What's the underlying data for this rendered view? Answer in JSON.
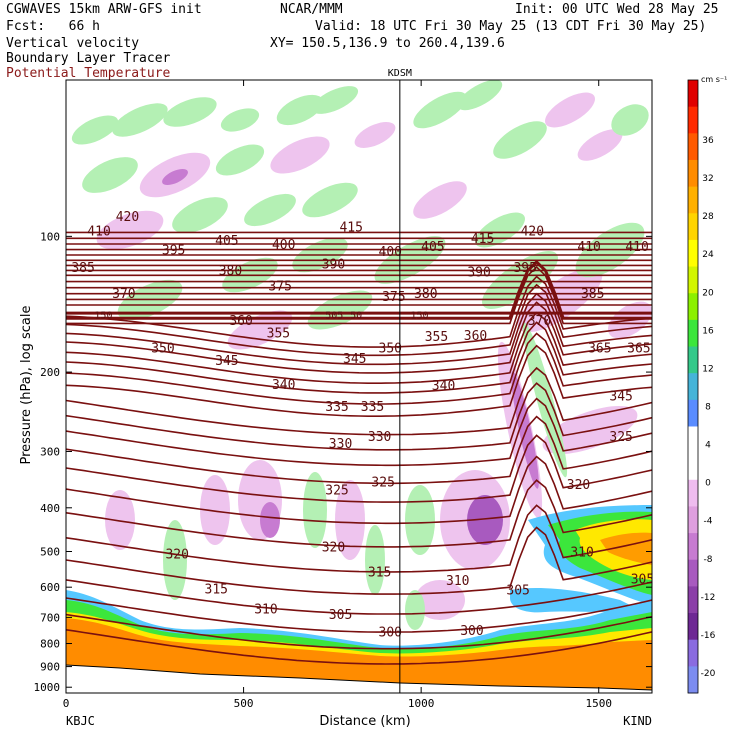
{
  "header": {
    "model": "CGWAVES 15km ARW-GFS init",
    "org": "NCAR/MMM",
    "init": "Init: 00 UTC Wed 28 May 25",
    "fcst": "Fcst:   66 h",
    "valid": "Valid: 18 UTC Fri 30 May 25 (13 CDT Fri 30 May 25)",
    "field1": "Vertical velocity",
    "xy": "XY= 150.5,136.9 to 260.4,139.6",
    "field2": "Boundary Layer Tracer",
    "field3": "Potential Temperature",
    "field3_color": "#8b1a1a"
  },
  "chart_data": {
    "type": "cross-section",
    "xlabel": "Distance (km)",
    "ylabel": "Pressure (hPa), log scale",
    "xlim": [
      0,
      1650
    ],
    "ylim": [
      1000,
      50
    ],
    "x_ticks": [
      0,
      500,
      1000,
      1500
    ],
    "y_ticks": [
      100,
      200,
      300,
      400,
      500,
      600,
      700,
      800,
      900,
      1000
    ],
    "left_station": "KBJC",
    "right_station": "KIND",
    "marker_station": "KDSM",
    "marker_x_km": 940,
    "colorbar": {
      "unit": "cm s⁻¹",
      "tick_labels": [
        "36",
        "32",
        "28",
        "24",
        "20",
        "16",
        "12",
        "8",
        "4",
        "0",
        "-4",
        "-8",
        "-12",
        "-16",
        "-20"
      ],
      "colors": [
        "#e00000",
        "#ff2a00",
        "#ff5a00",
        "#ff8c00",
        "#ffb000",
        "#ffd400",
        "#ffff00",
        "#d2f500",
        "#8cf000",
        "#3ce63c",
        "#34c98a",
        "#45b4d8",
        "#5a8cff",
        "#ffffff",
        "#ffffff",
        "#efbcef",
        "#df9fdf",
        "#c77bd1",
        "#a85abf",
        "#8b3fa8",
        "#6e2894",
        "#8a6be0",
        "#7c8cf0"
      ]
    },
    "isentropes": [
      {
        "theta": "420",
        "x": 140,
        "p": 91
      },
      {
        "theta": "410",
        "x": 60,
        "p": 98
      },
      {
        "theta": "415",
        "x": 770,
        "p": 96
      },
      {
        "theta": "420",
        "x": 1280,
        "p": 98
      },
      {
        "theta": "405",
        "x": 420,
        "p": 103
      },
      {
        "theta": "400",
        "x": 580,
        "p": 105
      },
      {
        "theta": "395",
        "x": 270,
        "p": 108
      },
      {
        "theta": "405",
        "x": 1000,
        "p": 106
      },
      {
        "theta": "415",
        "x": 1140,
        "p": 102
      },
      {
        "theta": "410",
        "x": 1440,
        "p": 106
      },
      {
        "theta": "410",
        "x": 1575,
        "p": 106
      },
      {
        "theta": "400",
        "x": 880,
        "p": 109
      },
      {
        "theta": "385",
        "x": 15,
        "p": 118
      },
      {
        "theta": "380",
        "x": 430,
        "p": 120
      },
      {
        "theta": "390",
        "x": 720,
        "p": 116
      },
      {
        "theta": "390",
        "x": 1130,
        "p": 121
      },
      {
        "theta": "395",
        "x": 1260,
        "p": 118
      },
      {
        "theta": "375",
        "x": 570,
        "p": 130
      },
      {
        "theta": "370",
        "x": 130,
        "p": 135
      },
      {
        "theta": "380",
        "x": 980,
        "p": 135
      },
      {
        "theta": "385",
        "x": 1450,
        "p": 135
      },
      {
        "theta": "375",
        "x": 890,
        "p": 137
      },
      {
        "theta": "360",
        "x": 460,
        "p": 155
      },
      {
        "theta": "355",
        "x": 565,
        "p": 165
      },
      {
        "theta": "350",
        "x": 240,
        "p": 178
      },
      {
        "theta": "345",
        "x": 420,
        "p": 190
      },
      {
        "theta": "345",
        "x": 780,
        "p": 188
      },
      {
        "theta": "350",
        "x": 880,
        "p": 178
      },
      {
        "theta": "355",
        "x": 1010,
        "p": 168
      },
      {
        "theta": "360",
        "x": 1120,
        "p": 167
      },
      {
        "theta": "370",
        "x": 1300,
        "p": 155
      },
      {
        "theta": "365",
        "x": 1470,
        "p": 178
      },
      {
        "theta": "365",
        "x": 1580,
        "p": 178
      },
      {
        "theta": "340",
        "x": 580,
        "p": 215
      },
      {
        "theta": "340",
        "x": 1030,
        "p": 216
      },
      {
        "theta": "335",
        "x": 730,
        "p": 240
      },
      {
        "theta": "335",
        "x": 830,
        "p": 240
      },
      {
        "theta": "345",
        "x": 1530,
        "p": 228
      },
      {
        "theta": "330",
        "x": 740,
        "p": 290
      },
      {
        "theta": "330",
        "x": 850,
        "p": 280
      },
      {
        "theta": "325",
        "x": 1530,
        "p": 280
      },
      {
        "theta": "325",
        "x": 730,
        "p": 368
      },
      {
        "theta": "325",
        "x": 860,
        "p": 353
      },
      {
        "theta": "320",
        "x": 1410,
        "p": 358
      },
      {
        "theta": "320",
        "x": 280,
        "p": 510
      },
      {
        "theta": "320",
        "x": 720,
        "p": 492
      },
      {
        "theta": "315",
        "x": 850,
        "p": 560
      },
      {
        "theta": "310",
        "x": 1070,
        "p": 585
      },
      {
        "theta": "310",
        "x": 1420,
        "p": 505
      },
      {
        "theta": "315",
        "x": 390,
        "p": 610
      },
      {
        "theta": "305",
        "x": 1240,
        "p": 613
      },
      {
        "theta": "305",
        "x": 1590,
        "p": 580
      },
      {
        "theta": "310",
        "x": 530,
        "p": 675
      },
      {
        "theta": "305",
        "x": 740,
        "p": 695
      },
      {
        "theta": "300",
        "x": 880,
        "p": 760
      },
      {
        "theta": "300",
        "x": 1110,
        "p": 755
      }
    ],
    "tropopause_labels": [
      {
        "theta": "150",
        "x": 80,
        "p": 150
      },
      {
        "theta": "505",
        "x": 730,
        "p": 150
      },
      {
        "theta": "50",
        "x": 800,
        "p": 150
      },
      {
        "theta": "150",
        "x": 970,
        "p": 150
      }
    ]
  }
}
